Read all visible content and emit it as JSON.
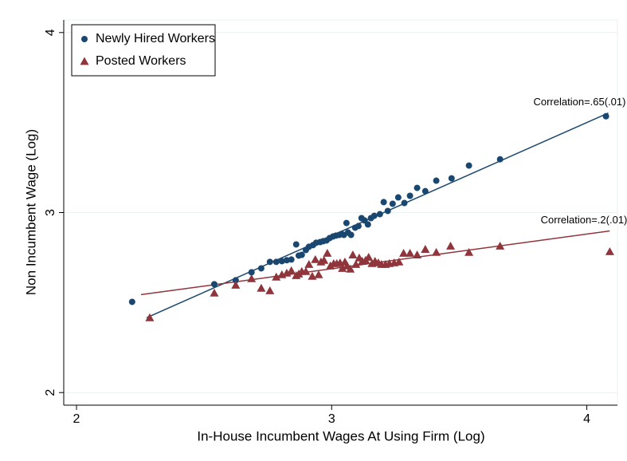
{
  "chart_data": {
    "type": "scatter",
    "x_label": "In-House Incumbent Wages At Using Firm (Log)",
    "y_label": "Non Incumbent Wage (Log)",
    "xlim": [
      1.95,
      4.12
    ],
    "ylim": [
      1.93,
      4.07
    ],
    "xticks": [
      2,
      3,
      4
    ],
    "yticks": [
      2,
      3,
      4
    ],
    "grid": true,
    "legend_position": "upper-left",
    "series": [
      {
        "name": "Newly Hired Workers",
        "color": "#1a476f",
        "marker": "circle",
        "x": [
          2.218,
          2.54,
          2.624,
          2.686,
          2.724,
          2.758,
          2.783,
          2.805,
          2.824,
          2.842,
          2.861,
          2.871,
          2.883,
          2.899,
          2.911,
          2.927,
          2.939,
          2.955,
          2.967,
          2.98,
          2.992,
          3.005,
          3.017,
          3.03,
          3.039,
          3.048,
          3.058,
          3.064,
          3.076,
          3.092,
          3.105,
          3.117,
          3.129,
          3.142,
          3.154,
          3.167,
          3.189,
          3.204,
          3.22,
          3.239,
          3.261,
          3.285,
          3.307,
          3.335,
          3.367,
          3.41,
          3.47,
          3.538,
          3.66,
          4.075
        ],
        "values": [
          2.504,
          2.602,
          2.624,
          2.668,
          2.69,
          2.726,
          2.726,
          2.73,
          2.735,
          2.739,
          2.823,
          2.761,
          2.765,
          2.792,
          2.81,
          2.819,
          2.832,
          2.836,
          2.841,
          2.845,
          2.858,
          2.867,
          2.872,
          2.876,
          2.881,
          2.876,
          2.942,
          2.889,
          2.876,
          2.916,
          2.925,
          2.969,
          2.956,
          2.934,
          2.969,
          2.982,
          2.991,
          3.058,
          3.009,
          3.049,
          3.084,
          3.053,
          3.093,
          3.137,
          3.119,
          3.177,
          3.19,
          3.261,
          3.296,
          3.535
        ]
      },
      {
        "name": "Posted Workers",
        "color": "#90353b",
        "marker": "triangle",
        "x": [
          2.287,
          2.54,
          2.624,
          2.686,
          2.724,
          2.758,
          2.783,
          2.805,
          2.824,
          2.842,
          2.861,
          2.871,
          2.883,
          2.899,
          2.911,
          2.924,
          2.936,
          2.949,
          2.958,
          2.97,
          2.983,
          2.995,
          3.008,
          3.02,
          3.033,
          3.042,
          3.052,
          3.061,
          3.073,
          3.083,
          3.095,
          3.108,
          3.12,
          3.133,
          3.145,
          3.158,
          3.17,
          3.183,
          3.195,
          3.211,
          3.226,
          3.245,
          3.264,
          3.282,
          3.307,
          3.335,
          3.367,
          3.41,
          3.466,
          3.538,
          3.66,
          4.09
        ],
        "values": [
          2.416,
          2.553,
          2.597,
          2.633,
          2.58,
          2.566,
          2.642,
          2.655,
          2.664,
          2.677,
          2.65,
          2.659,
          2.673,
          2.673,
          2.712,
          2.646,
          2.739,
          2.655,
          2.726,
          2.735,
          2.774,
          2.704,
          2.717,
          2.717,
          2.721,
          2.69,
          2.726,
          2.704,
          2.686,
          2.765,
          2.712,
          2.748,
          2.73,
          2.735,
          2.752,
          2.717,
          2.73,
          2.721,
          2.712,
          2.712,
          2.717,
          2.721,
          2.726,
          2.774,
          2.774,
          2.765,
          2.796,
          2.779,
          2.814,
          2.779,
          2.814,
          2.783
        ]
      }
    ],
    "fit_lines": [
      {
        "label": "Correlation=.65(.01)",
        "color": "#1a476f",
        "x": [
          2.275,
          4.084
        ],
        "y": [
          2.416,
          3.553
        ]
      },
      {
        "label": "Correlation=.2(.01)",
        "color": "#90353b",
        "x": [
          2.253,
          4.09
        ],
        "y": [
          2.544,
          2.898
        ]
      }
    ]
  }
}
